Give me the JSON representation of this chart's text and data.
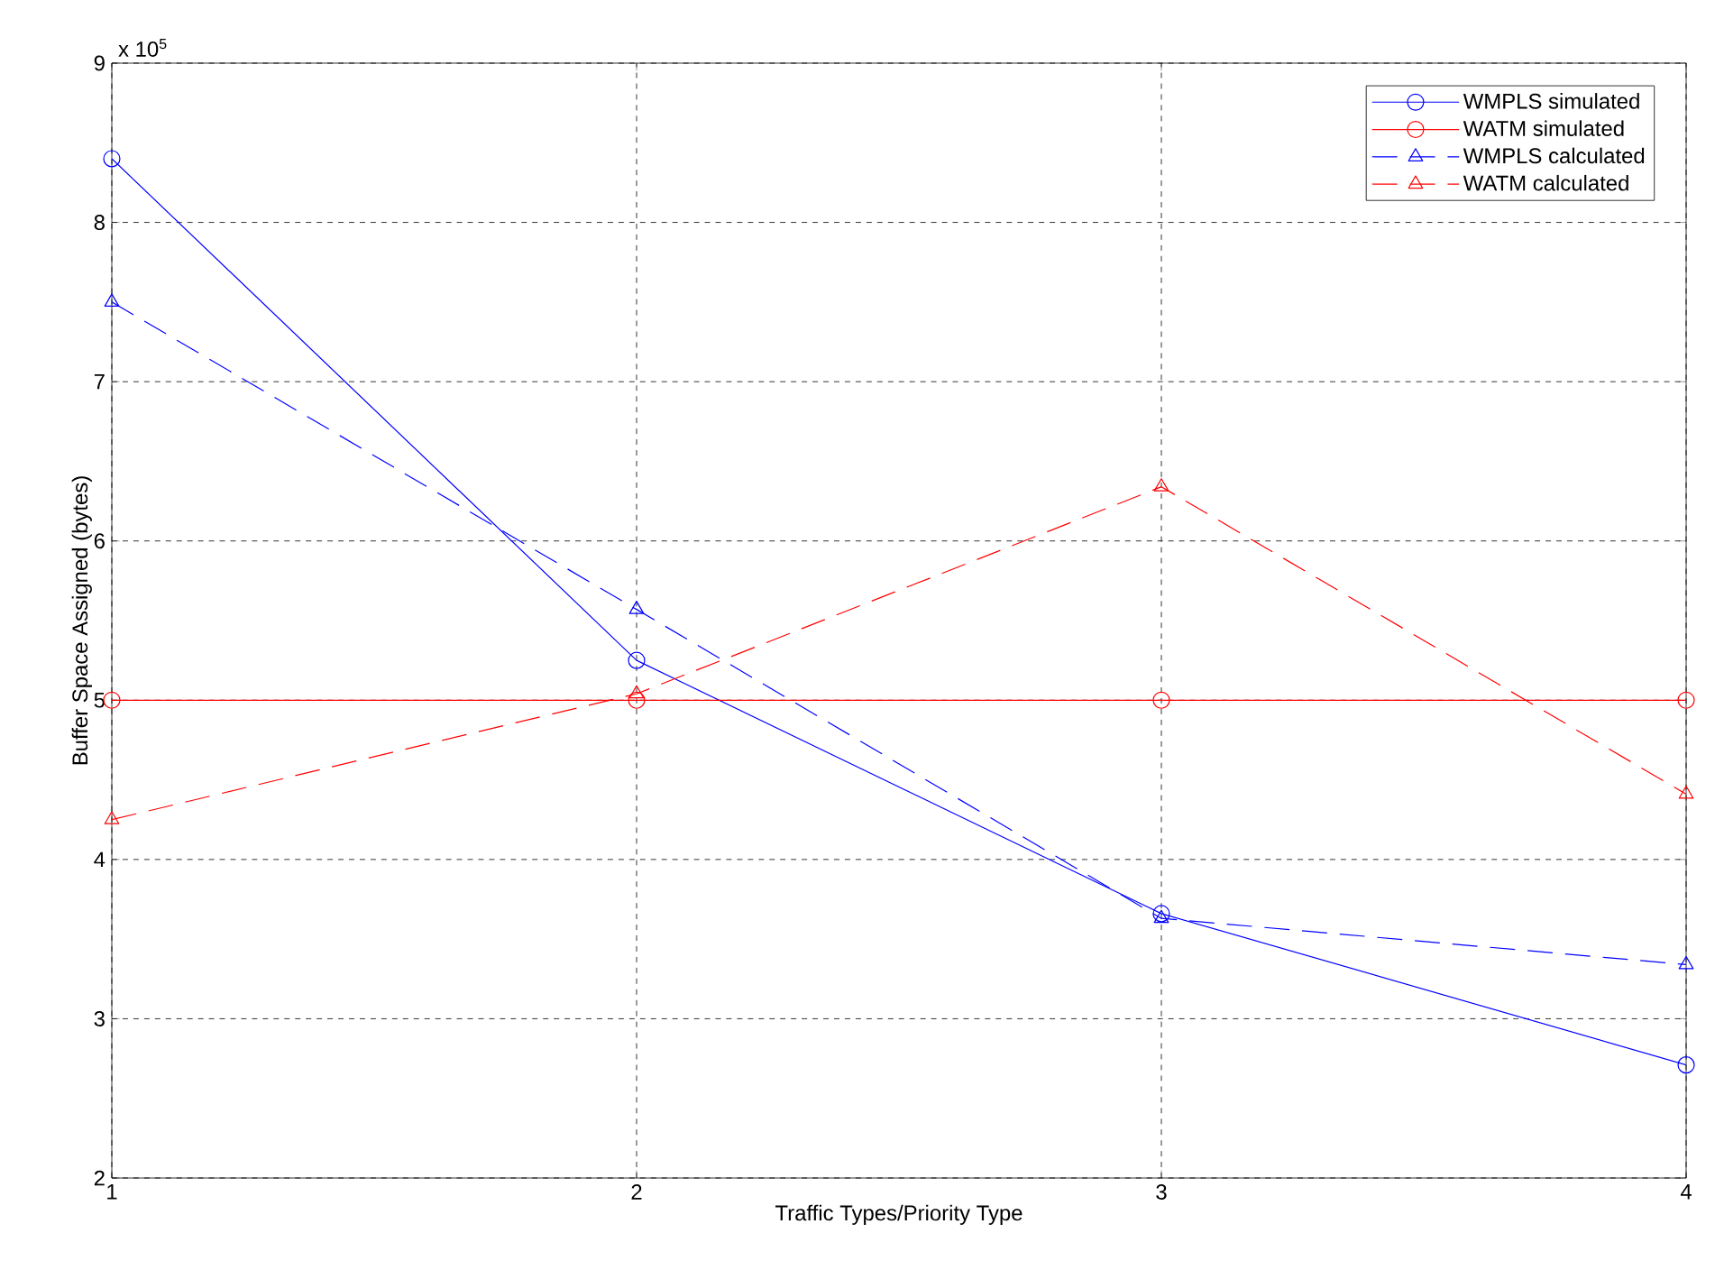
{
  "chart_data": {
    "type": "line",
    "xlabel": "Traffic Types/Priority Type",
    "ylabel": "Buffer Space Assigned (bytes)",
    "x": [
      1,
      2,
      3,
      4
    ],
    "series": [
      {
        "name": "WMPLS simulated",
        "color": "#0000ff",
        "marker": "circle",
        "line_style": "solid",
        "values": [
          8.4,
          5.25,
          3.66,
          2.71
        ]
      },
      {
        "name": "WATM simulated",
        "color": "#ff0000",
        "marker": "circle",
        "line_style": "solid",
        "values": [
          5,
          5,
          5,
          5
        ]
      },
      {
        "name": "WMPLS calculated",
        "color": "#0000ff",
        "marker": "triangle",
        "line_style": "dashed",
        "values": [
          7.5,
          5.57,
          3.63,
          3.34
        ]
      },
      {
        "name": "WATM calculated",
        "color": "#ff0000",
        "marker": "triangle",
        "line_style": "dashed",
        "values": [
          4.25,
          5.04,
          6.34,
          4.41
        ]
      }
    ],
    "xlim": [
      1,
      4
    ],
    "ylim": [
      2,
      9
    ],
    "xticks": [
      1,
      2,
      3,
      4
    ],
    "yticks": [
      2,
      3,
      4,
      5,
      6,
      7,
      8,
      9
    ],
    "annotations": [
      "x 10$^{5}$"
    ],
    "grid": true,
    "legend": "top right"
  }
}
